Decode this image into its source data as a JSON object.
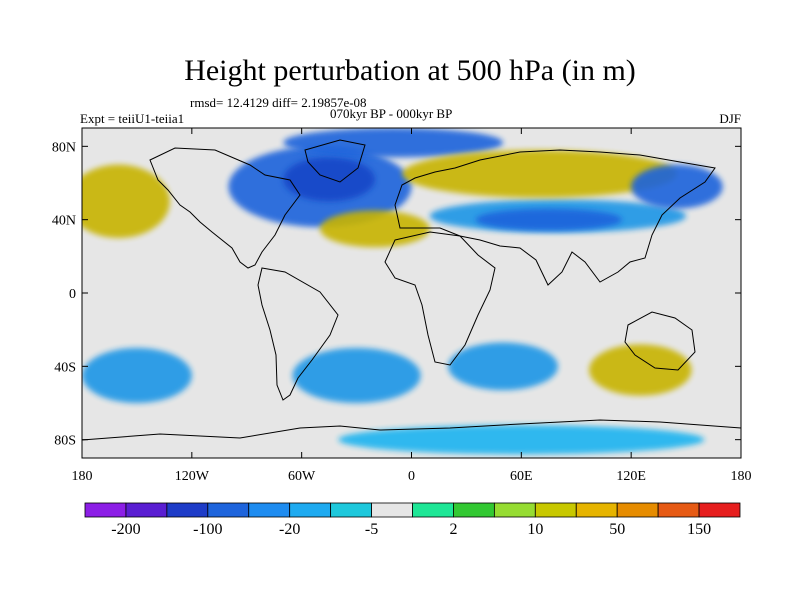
{
  "title": "Height perturbation at 500 hPa (in m)",
  "stats": "rmsd= 12.4129 diff= 2.19857e-08",
  "experiment": "Expt = teiiU1-teiia1",
  "period": "070kyr BP - 000kyr BP",
  "season": "DJF",
  "map": {
    "lon_range": [
      -180,
      180
    ],
    "lat_range": [
      -90,
      90
    ],
    "lon_ticks": [
      {
        "value": -180,
        "label": "180"
      },
      {
        "value": -120,
        "label": "120W"
      },
      {
        "value": -60,
        "label": "60W"
      },
      {
        "value": 0,
        "label": "0"
      },
      {
        "value": 60,
        "label": "60E"
      },
      {
        "value": 120,
        "label": "120E"
      },
      {
        "value": 180,
        "label": "180"
      }
    ],
    "lat_ticks": [
      {
        "value": 80,
        "label": "80N"
      },
      {
        "value": 40,
        "label": "40N"
      },
      {
        "value": 0,
        "label": "0"
      },
      {
        "value": -40,
        "label": "40S"
      },
      {
        "value": -80,
        "label": "80S"
      }
    ],
    "background_color": "#e6e6e6",
    "field_regions": [
      {
        "name": "n-atlantic-low",
        "lon": -50,
        "lat": 58,
        "rlon": 50,
        "rlat": 22,
        "color": "#1e64dc"
      },
      {
        "name": "n-atlantic-low-core",
        "lon": -45,
        "lat": 62,
        "rlon": 25,
        "rlat": 12,
        "color": "#1446c8"
      },
      {
        "name": "arctic-low",
        "lon": -10,
        "lat": 82,
        "rlon": 60,
        "rlat": 8,
        "color": "#1e64dc"
      },
      {
        "name": "eurasia-low",
        "lon": 80,
        "lat": 42,
        "rlon": 70,
        "rlat": 9,
        "color": "#1e96e6"
      },
      {
        "name": "eurasia-low-core",
        "lon": 75,
        "lat": 40,
        "rlon": 40,
        "rlat": 6,
        "color": "#1e64dc"
      },
      {
        "name": "siberia-high",
        "lon": 70,
        "lat": 65,
        "rlon": 75,
        "rlat": 13,
        "color": "#c8b400"
      },
      {
        "name": "nw-pacific-low",
        "lon": 145,
        "lat": 58,
        "rlon": 25,
        "rlat": 12,
        "color": "#1e64dc"
      },
      {
        "name": "ne-pacific-high",
        "lon": -160,
        "lat": 50,
        "rlon": 28,
        "rlat": 20,
        "color": "#c8b400"
      },
      {
        "name": "atlantic-high",
        "lon": -20,
        "lat": 35,
        "rlon": 30,
        "rlat": 10,
        "color": "#c8b400"
      },
      {
        "name": "s-atlantic-low",
        "lon": -30,
        "lat": -45,
        "rlon": 35,
        "rlat": 15,
        "color": "#1e96e6"
      },
      {
        "name": "s-indian-low",
        "lon": 50,
        "lat": -40,
        "rlon": 30,
        "rlat": 13,
        "color": "#1e96e6"
      },
      {
        "name": "s-indian-high",
        "lon": 125,
        "lat": -42,
        "rlon": 28,
        "rlat": 14,
        "color": "#c8b400"
      },
      {
        "name": "s-pacific-low",
        "lon": -150,
        "lat": -45,
        "rlon": 30,
        "rlat": 15,
        "color": "#1e96e6"
      },
      {
        "name": "antarctic-low",
        "lon": 60,
        "lat": -80,
        "rlon": 100,
        "rlat": 8,
        "color": "#1eb4f0"
      }
    ]
  },
  "colorbar": {
    "colors": [
      "#8c1ee6",
      "#5a1ed2",
      "#1e3cc8",
      "#1e64dc",
      "#1e8cf0",
      "#1eaaf0",
      "#1ec8dc",
      "#e6e6e6",
      "#1ee696",
      "#32c832",
      "#96dc32",
      "#c8c800",
      "#e6b400",
      "#e68c00",
      "#e65a14",
      "#e61e1e"
    ],
    "labels": [
      {
        "boundary": 1,
        "text": "-200"
      },
      {
        "boundary": 3,
        "text": "-100"
      },
      {
        "boundary": 5,
        "text": "-20"
      },
      {
        "boundary": 7,
        "text": "-5"
      },
      {
        "boundary": 9,
        "text": "2"
      },
      {
        "boundary": 11,
        "text": "10"
      },
      {
        "boundary": 13,
        "text": "50"
      },
      {
        "boundary": 15,
        "text": "150"
      }
    ]
  }
}
